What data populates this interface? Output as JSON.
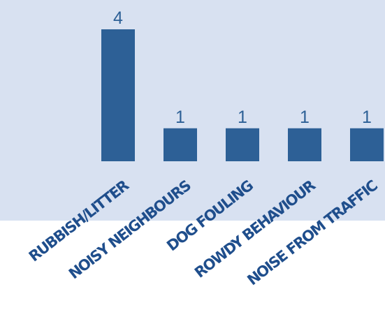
{
  "colors": {
    "plot_background": "#d8e1f1",
    "bar": "#2d6096",
    "value_label": "#2d6096",
    "category_label": "#1f4e8c"
  },
  "chart_data": {
    "type": "bar",
    "title": "",
    "xlabel": "",
    "ylabel": "",
    "categories": [
      "RUBBISH/LITTER",
      "NOISY NEIGHBOURS",
      "DOG FOULING",
      "ROWDY BEHAVIOUR",
      "NOISE FROM TRAFFIC"
    ],
    "values": [
      4,
      1,
      1,
      1,
      1
    ],
    "ylim": [
      0,
      4
    ],
    "grid": false,
    "legend": "none",
    "data_labels": true,
    "category_label_rotation": "diagonal"
  }
}
